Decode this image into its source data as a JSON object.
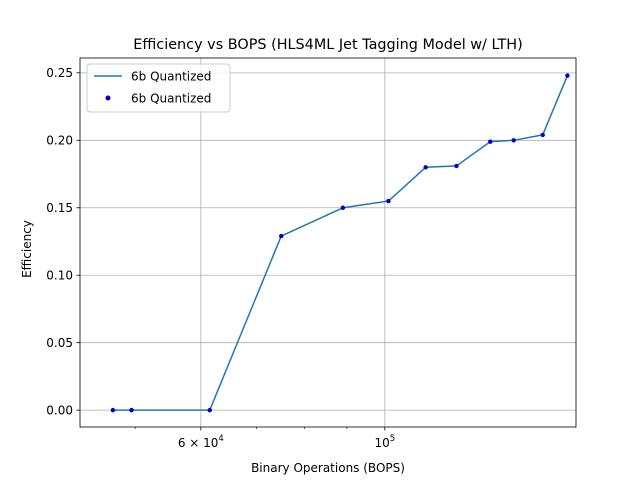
{
  "chart_data": {
    "type": "line",
    "title": "Efficiency vs BOPS (HLS4ML Jet Tagging Model w/ LTH)",
    "xlabel": "Binary Operations (BOPS)",
    "ylabel": "Efficiency",
    "xscale": "log",
    "xlim": [
      42900,
      170000
    ],
    "ylim": [
      -0.0125,
      0.261
    ],
    "grid": true,
    "legend_position": "upper-left",
    "x_ticks": [
      {
        "value": 60000,
        "base": "6",
        "sup": "4",
        "label": "6 × 10^4"
      },
      {
        "value": 100000,
        "base": "10",
        "sup": "5",
        "label": "10^5"
      }
    ],
    "x_minor_ticks": [
      50000,
      70000,
      80000,
      90000
    ],
    "y_ticks": [
      "0.00",
      "0.05",
      "0.10",
      "0.15",
      "0.20",
      "0.25"
    ],
    "y_tick_values": [
      0.0,
      0.05,
      0.1,
      0.15,
      0.2,
      0.25
    ],
    "series": [
      {
        "name": "6b Quantized",
        "style": "line",
        "color": "#1f77b4",
        "x": [
          47000,
          49500,
          61500,
          75000,
          89000,
          101000,
          112000,
          122000,
          134000,
          143000,
          155000,
          166000
        ],
        "y": [
          0.0,
          0.0,
          0.0,
          0.129,
          0.15,
          0.155,
          0.18,
          0.181,
          0.199,
          0.2,
          0.204,
          0.248
        ]
      },
      {
        "name": "6b Quantized",
        "style": "markers",
        "color": "#0000cc",
        "x": [
          47000,
          49500,
          61500,
          75000,
          89000,
          101000,
          112000,
          122000,
          134000,
          143000,
          155000,
          166000
        ],
        "y": [
          0.0,
          0.0,
          0.0,
          0.129,
          0.15,
          0.155,
          0.18,
          0.181,
          0.199,
          0.2,
          0.204,
          0.248
        ]
      }
    ]
  }
}
